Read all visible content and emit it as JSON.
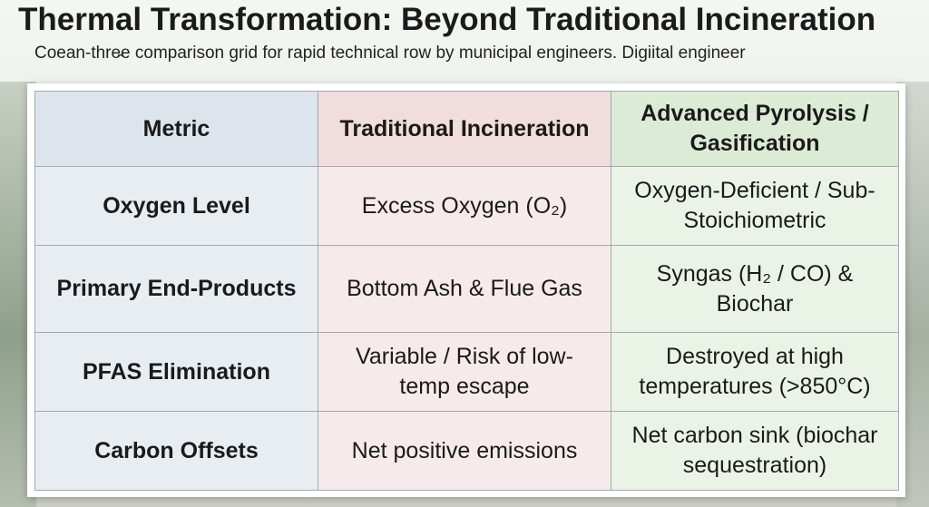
{
  "header": {
    "title": "Thermal Transformation: Beyond Traditional Incineration",
    "subtitle": "Coean-thre̵e comparison grid for rapid technical row by municipal engineers. Digiital engineer"
  },
  "table": {
    "columns": [
      "Metric",
      "Traditional Incineration",
      "Advanced Pyrolysis / Gasification"
    ],
    "rows": [
      [
        "Oxygen Level",
        "Excess Oxygen (O₂)",
        "Oxygen-Deficient / Sub-Stoichiometric"
      ],
      [
        "Primary End-Products",
        "Bottom Ash & Flue Gas",
        "Syngas (H₂ / CO) & Biochar"
      ],
      [
        "PFAS Elimination",
        "Variable / Risk of low-temp escape",
        "Destroyed at high temperatures (>850°C)"
      ],
      [
        "Carbon Offsets",
        "Net positive emissions",
        "Net carbon sink (biochar sequestration)"
      ]
    ]
  }
}
